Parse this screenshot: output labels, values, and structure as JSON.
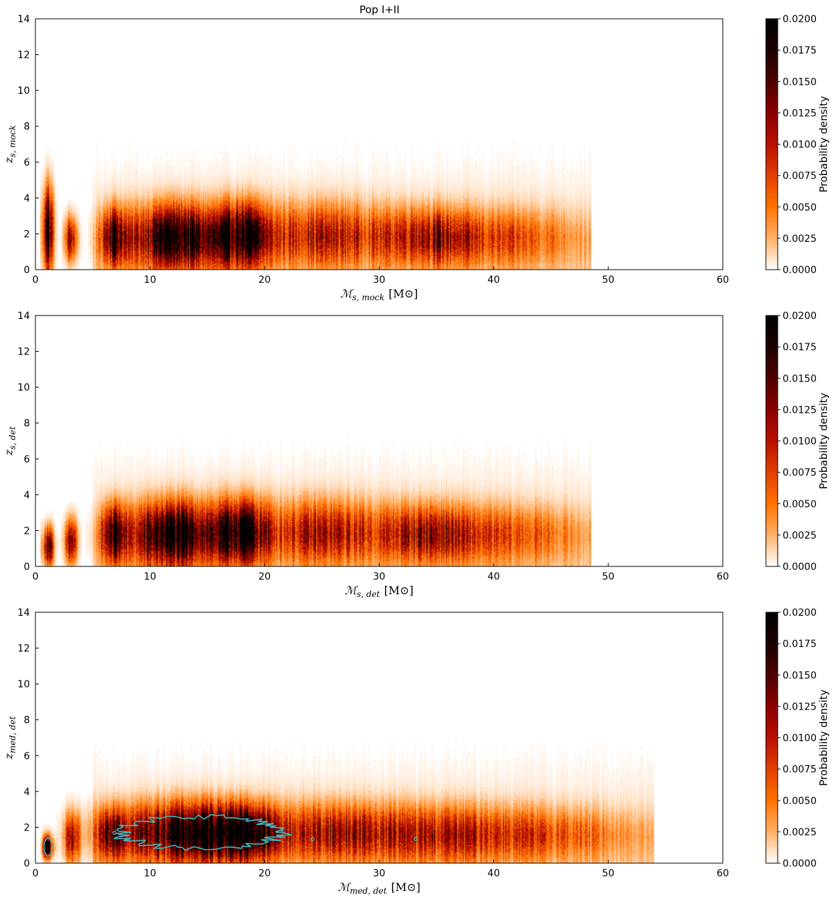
{
  "figure": {
    "title": "Pop I+II"
  },
  "colorbar": {
    "label": "Probability density",
    "ticks": [
      "0.0000",
      "0.0025",
      "0.0050",
      "0.0075",
      "0.0100",
      "0.0125",
      "0.0150",
      "0.0175",
      "0.0200"
    ],
    "range": [
      0,
      0.02
    ],
    "colormap": "gist_heat_r",
    "colors": [
      "#ffffff",
      "#ffb066",
      "#ff7300",
      "#e04000",
      "#b81000",
      "#8a0000",
      "#4e0000",
      "#1c0000",
      "#000000"
    ]
  },
  "chart_data": [
    {
      "type": "heatmap",
      "title": "Pop I+II",
      "xlabel_main": "ℳ",
      "xlabel_sub": "s, mock",
      "xlabel_unit": "[M⊙]",
      "ylabel_main": "z",
      "ylabel_sub": "s, mock",
      "xlim": [
        0,
        60
      ],
      "ylim": [
        0,
        14
      ],
      "xticks": [
        0,
        10,
        20,
        30,
        40,
        50,
        60
      ],
      "yticks": [
        0,
        2,
        4,
        6,
        8,
        10,
        12,
        14
      ],
      "colorbar_range": [
        0,
        0.02
      ],
      "contour": false,
      "mass_extent": [
        1,
        48.5
      ],
      "redshift_peak": 1.8,
      "density_blobs": [
        {
          "x": 1.1,
          "y": 2.2,
          "sx": 0.3,
          "sy": 1.5,
          "peak": 0.02
        },
        {
          "x": 3.1,
          "y": 1.7,
          "sx": 0.35,
          "sy": 0.8,
          "peak": 0.012
        },
        {
          "x": 6.8,
          "y": 1.8,
          "sx": 0.7,
          "sy": 1.0,
          "peak": 0.016
        },
        {
          "x": 12.2,
          "y": 1.8,
          "sx": 2.6,
          "sy": 1.1,
          "peak": 0.02
        },
        {
          "x": 18.0,
          "y": 1.9,
          "sx": 1.5,
          "sy": 1.1,
          "peak": 0.017
        },
        {
          "x": 25.0,
          "y": 1.9,
          "sx": 4.0,
          "sy": 1.1,
          "peak": 0.009
        },
        {
          "x": 34.5,
          "y": 1.8,
          "sx": 2.8,
          "sy": 1.0,
          "peak": 0.01
        },
        {
          "x": 42.0,
          "y": 1.8,
          "sx": 4.0,
          "sy": 1.0,
          "peak": 0.005
        }
      ]
    },
    {
      "type": "heatmap",
      "xlabel_main": "ℳ",
      "xlabel_sub": "s, det",
      "xlabel_unit": "[M⊙]",
      "ylabel_main": "z",
      "ylabel_sub": "s, det",
      "xlim": [
        0,
        60
      ],
      "ylim": [
        0,
        14
      ],
      "xticks": [
        0,
        10,
        20,
        30,
        40,
        50,
        60
      ],
      "yticks": [
        0,
        2,
        4,
        6,
        8,
        10,
        12,
        14
      ],
      "colorbar_range": [
        0,
        0.02
      ],
      "contour": false,
      "mass_extent": [
        1,
        48.5
      ],
      "redshift_peak": 1.8,
      "density_blobs": [
        {
          "x": 1.1,
          "y": 1.1,
          "sx": 0.3,
          "sy": 0.7,
          "peak": 0.016
        },
        {
          "x": 3.1,
          "y": 1.4,
          "sx": 0.35,
          "sy": 0.8,
          "peak": 0.013
        },
        {
          "x": 6.8,
          "y": 1.8,
          "sx": 0.7,
          "sy": 1.0,
          "peak": 0.016
        },
        {
          "x": 12.2,
          "y": 1.8,
          "sx": 2.6,
          "sy": 1.1,
          "peak": 0.02
        },
        {
          "x": 18.0,
          "y": 1.9,
          "sx": 1.5,
          "sy": 1.1,
          "peak": 0.017
        },
        {
          "x": 25.0,
          "y": 1.9,
          "sx": 4.0,
          "sy": 1.1,
          "peak": 0.009
        },
        {
          "x": 34.5,
          "y": 1.8,
          "sx": 2.8,
          "sy": 1.0,
          "peak": 0.01
        },
        {
          "x": 42.0,
          "y": 1.8,
          "sx": 4.0,
          "sy": 1.0,
          "peak": 0.005
        }
      ]
    },
    {
      "type": "heatmap",
      "xlabel_main": "ℳ",
      "xlabel_sub": "med, det",
      "xlabel_unit": "[M⊙]",
      "ylabel_main": "z",
      "ylabel_sub": "med, det",
      "xlim": [
        0,
        60
      ],
      "ylim": [
        0,
        14
      ],
      "xticks": [
        0,
        10,
        20,
        30,
        40,
        50,
        60
      ],
      "yticks": [
        0,
        2,
        4,
        6,
        8,
        10,
        12,
        14
      ],
      "colorbar_range": [
        0,
        0.02
      ],
      "contour": true,
      "contour_color": "#3fb9c4",
      "mass_extent": [
        1,
        54
      ],
      "redshift_peak": 1.6,
      "density_blobs": [
        {
          "x": 1.1,
          "y": 0.9,
          "sx": 0.3,
          "sy": 0.4,
          "peak": 0.02
        },
        {
          "x": 3.2,
          "y": 1.4,
          "sx": 0.45,
          "sy": 0.9,
          "peak": 0.01
        },
        {
          "x": 6.8,
          "y": 1.6,
          "sx": 0.8,
          "sy": 0.9,
          "peak": 0.015
        },
        {
          "x": 13.5,
          "y": 1.7,
          "sx": 4.0,
          "sy": 1.0,
          "peak": 0.02
        },
        {
          "x": 18.0,
          "y": 1.7,
          "sx": 1.8,
          "sy": 0.9,
          "peak": 0.016
        },
        {
          "x": 26.0,
          "y": 1.7,
          "sx": 4.0,
          "sy": 1.0,
          "peak": 0.009
        },
        {
          "x": 36.0,
          "y": 1.6,
          "sx": 5.0,
          "sy": 1.0,
          "peak": 0.008
        },
        {
          "x": 46.0,
          "y": 1.6,
          "sx": 5.0,
          "sy": 0.9,
          "peak": 0.004
        }
      ]
    }
  ]
}
